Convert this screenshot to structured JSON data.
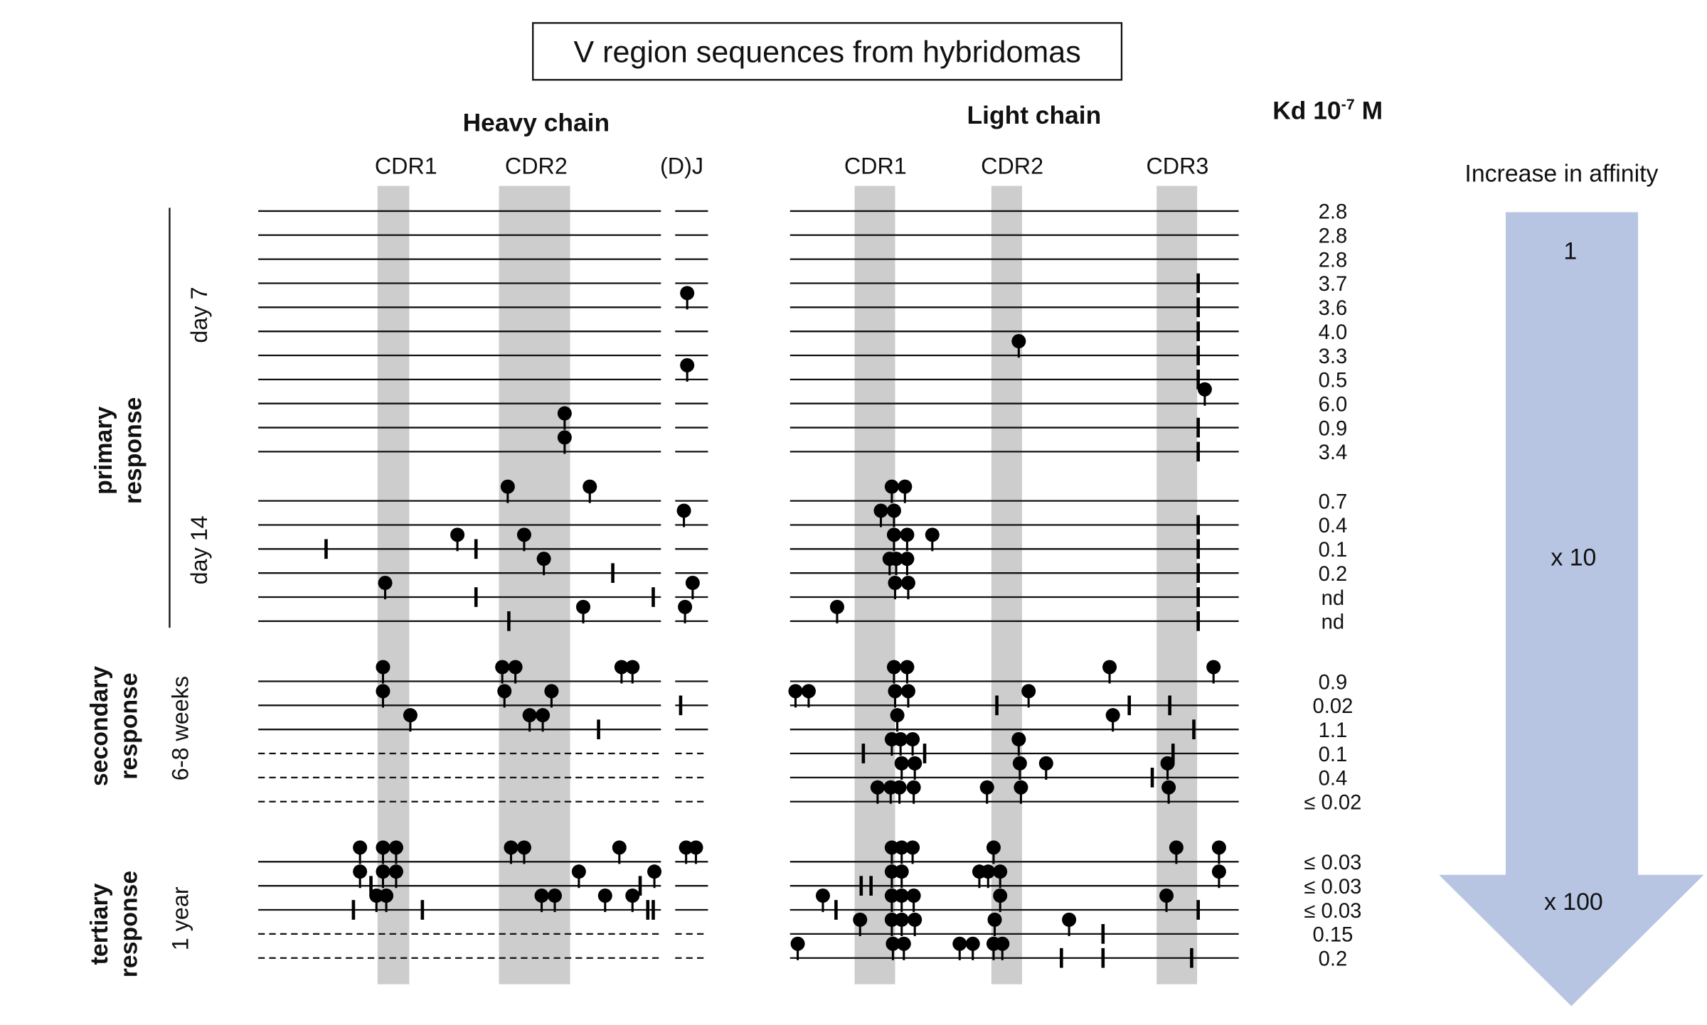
{
  "title": "V region sequences from hybridomas",
  "heavy_chain": {
    "label": "Heavy chain",
    "regions": [
      "CDR1",
      "CDR2",
      "(D)J"
    ]
  },
  "light_chain": {
    "label": "Light chain",
    "regions": [
      "CDR1",
      "CDR2",
      "CDR3"
    ]
  },
  "kd_header": {
    "text": "Kd 10",
    "sup": "-7",
    "unit": " M"
  },
  "groups": [
    {
      "line1": "primary",
      "line2": "response"
    },
    {
      "line1": "secondary",
      "line2": "response"
    },
    {
      "line1": "tertiary",
      "line2": "response"
    }
  ],
  "timepoints": [
    "day 7",
    "day 14",
    "6-8 weeks",
    "1 year"
  ],
  "kd_values": [
    "2.8",
    "2.8",
    "2.8",
    "3.7",
    "3.6",
    "4.0",
    "3.3",
    "0.5",
    "6.0",
    "0.9",
    "3.4",
    "0.7",
    "0.4",
    "0.1",
    "0.2",
    "nd",
    "nd",
    "0.9",
    "0.02",
    "1.1",
    "0.1",
    "0.4",
    "≤ 0.02",
    "≤ 0.03",
    "≤ 0.03",
    "≤ 0.03",
    "0.15",
    "0.2"
  ],
  "affinity": {
    "label": "Increase in affinity",
    "markers": [
      "1",
      "x 10",
      "x 100"
    ],
    "color": "#b7c5e3"
  },
  "colors": {
    "cdr_shading": "#cdcdcd",
    "mark": "#000000"
  }
}
